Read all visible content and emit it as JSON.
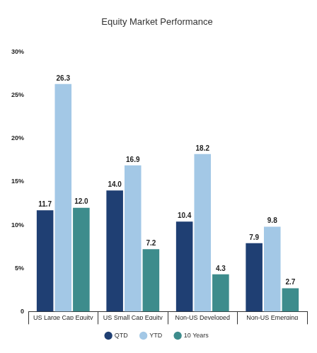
{
  "chart_data": {
    "type": "bar",
    "title": "Equity Market Performance",
    "categories": [
      "US Large Cap Equity",
      "US Small Cap Equity",
      "Non-US Developed Equity",
      "Non-US Emerging Markets Equity"
    ],
    "series": [
      {
        "name": "QTD",
        "color": "#1f3f73",
        "values": [
          11.7,
          14.0,
          10.4,
          7.9
        ],
        "value_labels": [
          "11.7",
          "14.0",
          "10.4",
          "7.9"
        ]
      },
      {
        "name": "YTD",
        "color": "#a3c8e6",
        "values": [
          26.3,
          16.9,
          18.2,
          9.8
        ],
        "value_labels": [
          "26.3",
          "16.9",
          "18.2",
          "9.8"
        ]
      },
      {
        "name": "10 Years",
        "color": "#3d8c8c",
        "values": [
          12.0,
          7.2,
          4.3,
          2.7
        ],
        "value_labels": [
          "12.0",
          "7.2",
          "4.3",
          "2.7"
        ]
      }
    ],
    "ylim": [
      0,
      30
    ],
    "yticks": [
      0,
      {
        "value": 5,
        "label": "5%"
      },
      {
        "value": 10,
        "label": "10%"
      },
      {
        "value": 15,
        "label": "15%"
      },
      {
        "value": 20,
        "label": "20%"
      },
      {
        "value": 25,
        "label": "25%"
      },
      {
        "value": 30,
        "label": "30%"
      }
    ],
    "grid": false,
    "legend": "bottom",
    "data_labels": true
  }
}
